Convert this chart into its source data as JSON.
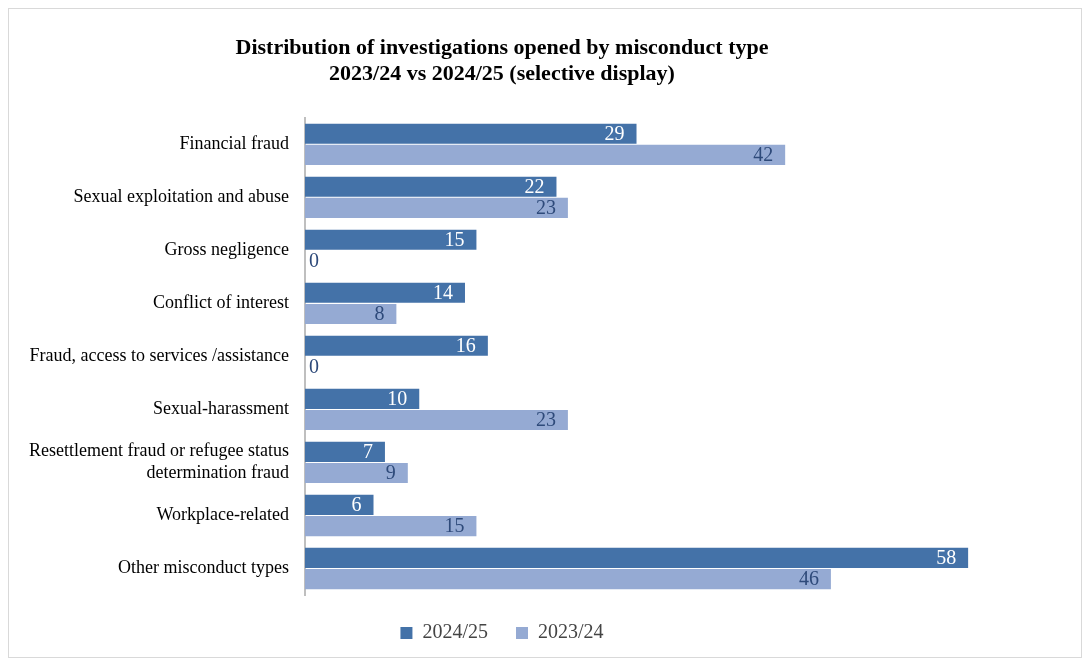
{
  "chart_data": {
    "type": "bar",
    "orientation": "horizontal",
    "title": "Distribution of investigations opened by misconduct type\n2023/24 vs 2024/25 (selective display)",
    "categories": [
      "Financial fraud",
      "Sexual exploitation and abuse",
      "Gross negligence",
      "Conflict of interest",
      "Fraud, access to services /assistance",
      "Sexual-harassment",
      "Resettlement fraud or refugee status determination fraud",
      "Workplace-related",
      "Other misconduct types"
    ],
    "series": [
      {
        "name": "2024/25",
        "color": "#4472a8",
        "values": [
          29,
          22,
          15,
          14,
          16,
          10,
          7,
          6,
          58
        ]
      },
      {
        "name": "2023/24",
        "color": "#95aad3",
        "values": [
          42,
          23,
          0,
          8,
          0,
          23,
          9,
          15,
          46
        ]
      }
    ],
    "data_labels": true,
    "grid": false,
    "legend": "bottom"
  }
}
